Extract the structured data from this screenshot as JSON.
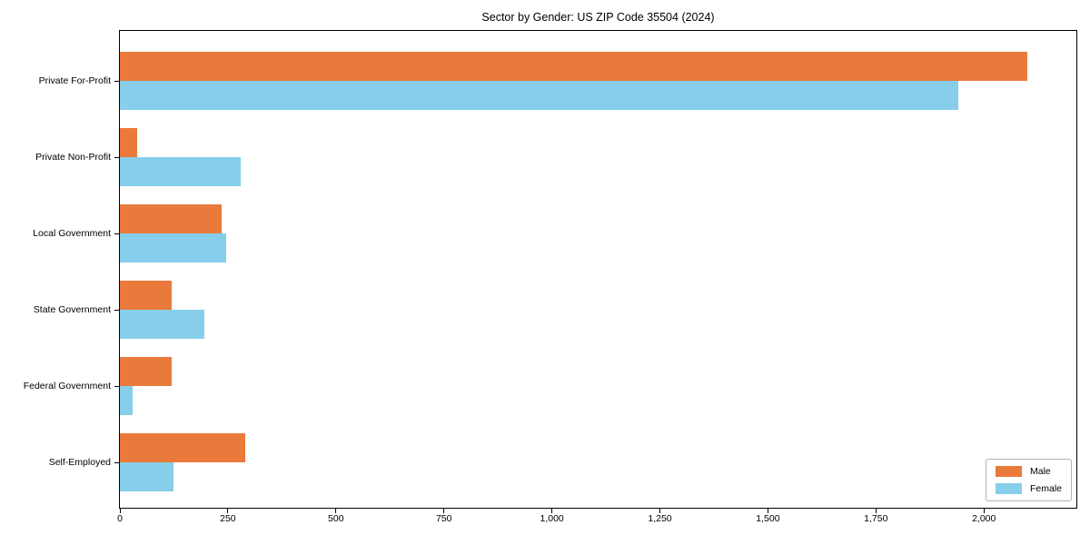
{
  "chart_data": {
    "type": "bar",
    "orientation": "horizontal",
    "title": "Sector by Gender: US ZIP Code 35504 (2024)",
    "xlabel": "",
    "ylabel": "",
    "categories": [
      "Private For-Profit",
      "Private Non-Profit",
      "Local Government",
      "State Government",
      "Federal Government",
      "Self-Employed"
    ],
    "series": [
      {
        "name": "Male",
        "color": "#e97a3b",
        "values": [
          2100,
          40,
          235,
          120,
          120,
          290
        ]
      },
      {
        "name": "Female",
        "color": "#87ceeb",
        "values": [
          1940,
          280,
          245,
          195,
          30,
          125
        ]
      }
    ],
    "xlim": [
      0,
      2214
    ],
    "xticks": [
      0,
      250,
      500,
      750,
      1000,
      1250,
      1500,
      1750,
      2000
    ],
    "xtick_labels": [
      "0",
      "250",
      "500",
      "750",
      "1,000",
      "1,250",
      "1,500",
      "1,750",
      "2,000"
    ],
    "grid": false,
    "legend": {
      "position": "lower right",
      "entries": [
        "Male",
        "Female"
      ]
    }
  },
  "colors": {
    "background": "#ffffff",
    "axis": "#000000",
    "legend_border": "#b3b3b3",
    "male": "#e97a3b",
    "female": "#87ceeb"
  }
}
